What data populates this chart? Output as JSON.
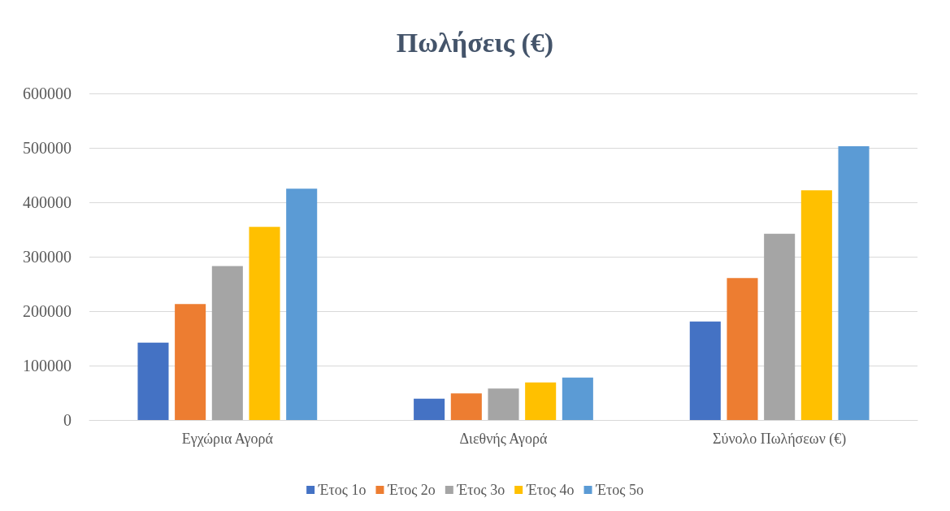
{
  "chart_data": {
    "type": "bar",
    "title": "Πωλήσεις (€)",
    "categories": [
      "Εγχώρια Αγορά",
      "Διεθνής Αγορά",
      "Σύνολο Πωλήσεων (€)"
    ],
    "series": [
      {
        "name": "Έτος 1ο",
        "color": "#4472c4",
        "values": [
          142000,
          39000,
          181000
        ]
      },
      {
        "name": "Έτος 2ο",
        "color": "#ed7d31",
        "values": [
          213000,
          49000,
          261000
        ]
      },
      {
        "name": "Έτος 3ο",
        "color": "#a5a5a5",
        "values": [
          283000,
          58000,
          342000
        ]
      },
      {
        "name": "Έτος 4ο",
        "color": "#ffc000",
        "values": [
          355000,
          69000,
          422000
        ]
      },
      {
        "name": "Έτος 5ο",
        "color": "#5b9bd5",
        "values": [
          425000,
          78000,
          503000
        ]
      }
    ],
    "ylim": [
      0,
      600000
    ],
    "yticks": [
      0,
      100000,
      200000,
      300000,
      400000,
      500000,
      600000
    ],
    "grid": "y",
    "legend": "bottom"
  }
}
